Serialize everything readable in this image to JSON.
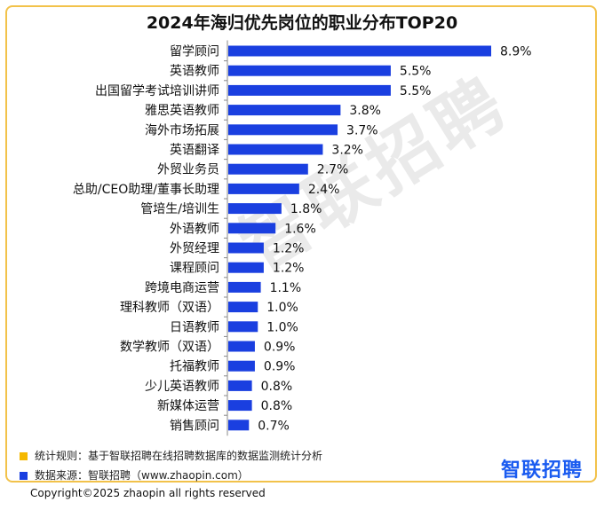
{
  "title": "2024年海归优先岗位的职业分布TOP20",
  "watermark": "智联招聘",
  "notes": [
    {
      "text": "统计规则：基于智联招聘在线招聘数据库的数据监测统计分析",
      "color": "#f5b800"
    },
    {
      "text": "数据来源：智联招聘（www.zhaopin.com）",
      "color": "#1a3fe0"
    }
  ],
  "brand": "智联招聘",
  "copyright": "Copyright©2025 zhaopin all rights reserved",
  "colors": {
    "bar": "#1a3fe0",
    "border": "#f2c24a"
  },
  "chart_data": {
    "type": "bar",
    "orientation": "horizontal",
    "title": "2024年海归优先岗位的职业分布TOP20",
    "categories": [
      "留学顾问",
      "英语教师",
      "出国留学考试培训讲师",
      "雅思英语教师",
      "海外市场拓展",
      "英语翻译",
      "外贸业务员",
      "总助/CEO助理/董事长助理",
      "管培生/培训生",
      "外语教师",
      "外贸经理",
      "课程顾问",
      "跨境电商运营",
      "理科教师（双语）",
      "日语教师",
      "数学教师（双语）",
      "托福教师",
      "少儿英语教师",
      "新媒体运营",
      "销售顾问"
    ],
    "values": [
      8.9,
      5.5,
      5.5,
      3.8,
      3.7,
      3.2,
      2.7,
      2.4,
      1.8,
      1.6,
      1.2,
      1.2,
      1.1,
      1.0,
      1.0,
      0.9,
      0.9,
      0.8,
      0.8,
      0.7
    ],
    "value_labels": [
      "8.9%",
      "5.5%",
      "5.5%",
      "3.8%",
      "3.7%",
      "3.2%",
      "2.7%",
      "2.4%",
      "1.8%",
      "1.6%",
      "1.2%",
      "1.2%",
      "1.1%",
      "1.0%",
      "1.0%",
      "0.9%",
      "0.9%",
      "0.8%",
      "0.8%",
      "0.7%"
    ],
    "xlim": [
      0,
      8.9
    ]
  }
}
